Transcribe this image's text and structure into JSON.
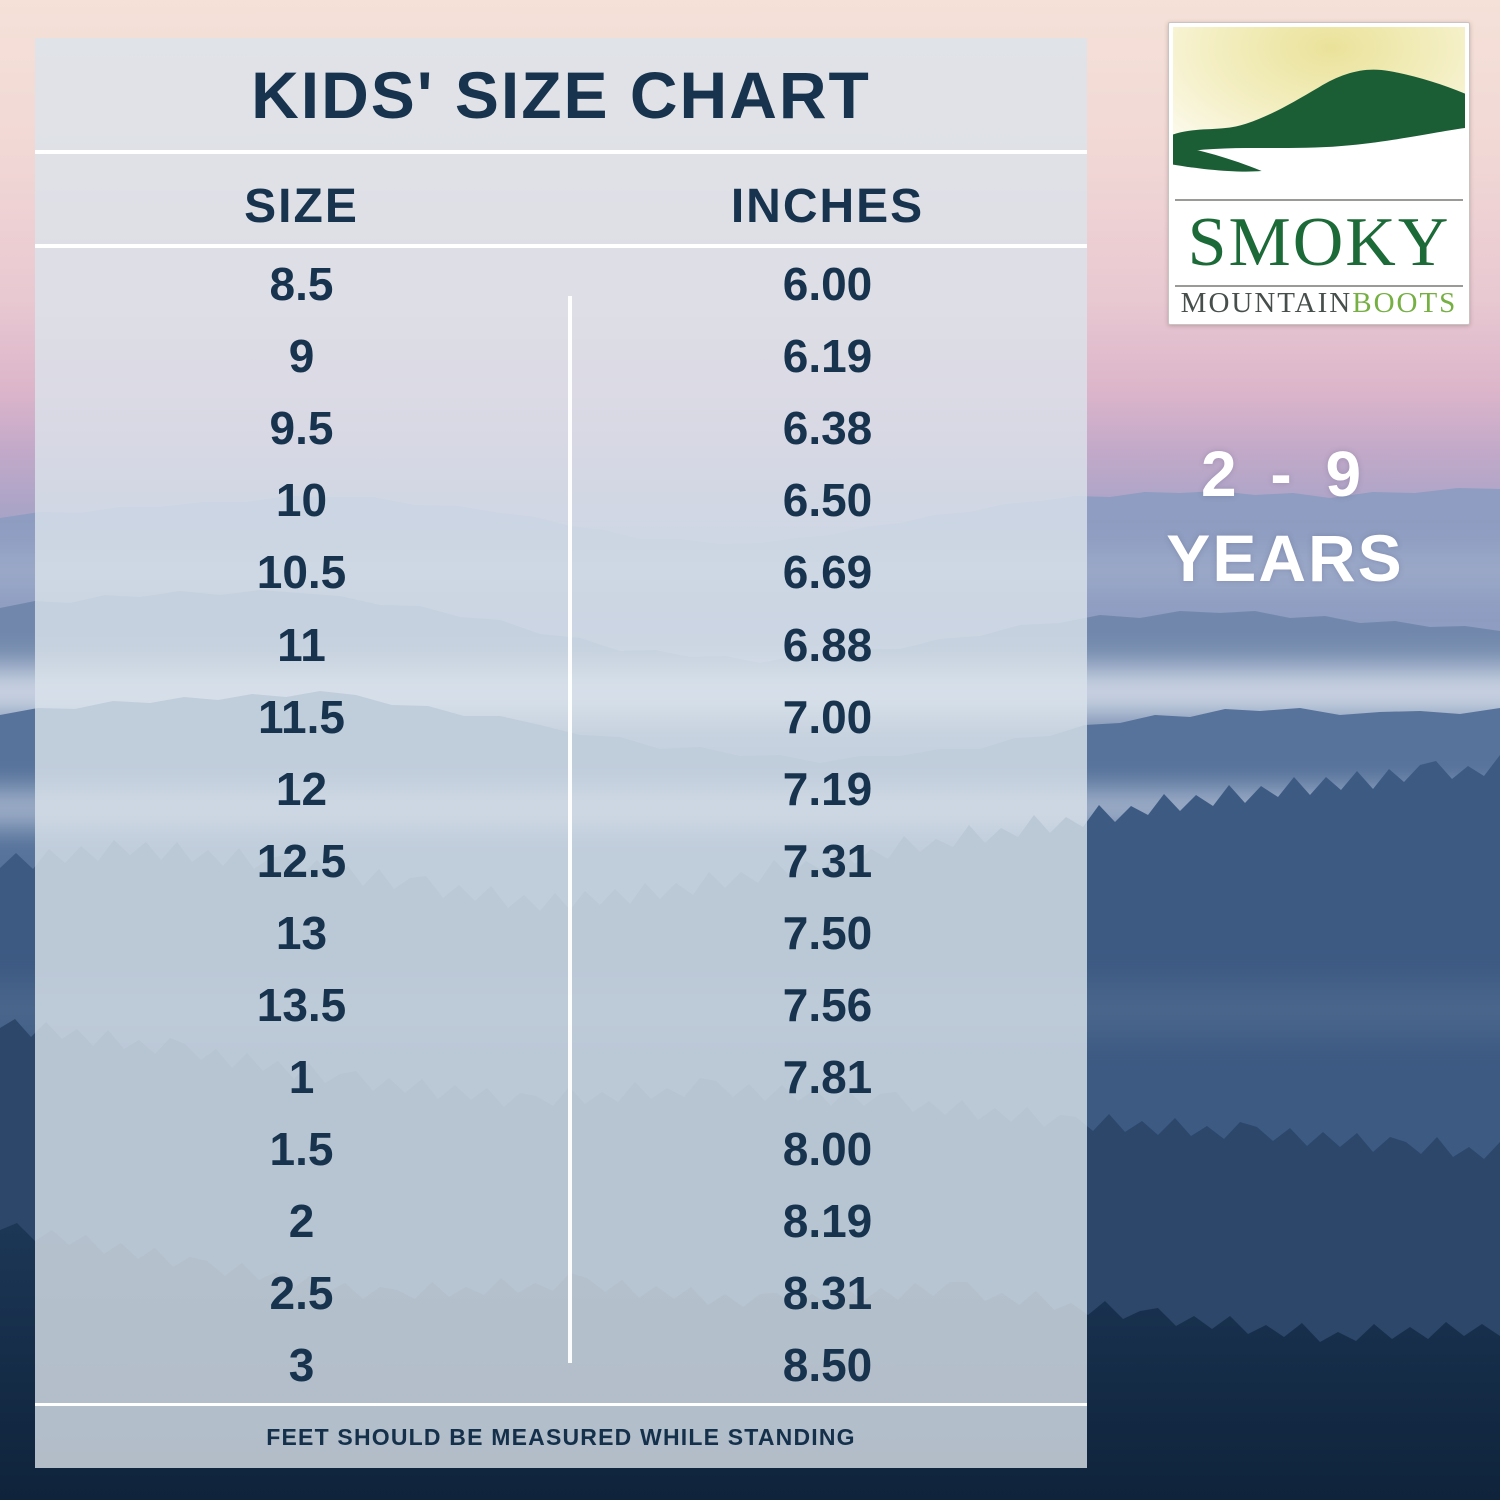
{
  "chart_data": {
    "type": "table",
    "title": "KIDS' SIZE CHART",
    "columns": [
      "SIZE",
      "INCHES"
    ],
    "rows": [
      [
        "8.5",
        "6.00"
      ],
      [
        "9",
        "6.19"
      ],
      [
        "9.5",
        "6.38"
      ],
      [
        "10",
        "6.50"
      ],
      [
        "10.5",
        "6.69"
      ],
      [
        "11",
        "6.88"
      ],
      [
        "11.5",
        "7.00"
      ],
      [
        "12",
        "7.19"
      ],
      [
        "12.5",
        "7.31"
      ],
      [
        "13",
        "7.50"
      ],
      [
        "13.5",
        "7.56"
      ],
      [
        "1",
        "7.81"
      ],
      [
        "1.5",
        "8.00"
      ],
      [
        "2",
        "8.19"
      ],
      [
        "2.5",
        "8.31"
      ],
      [
        "3",
        "8.50"
      ]
    ],
    "footnote": "FEET SHOULD BE MEASURED WHILE STANDING",
    "layout_hints": {
      "columns_divider": true,
      "header_rules": true
    }
  },
  "logo": {
    "name": "SMOKY",
    "sub_mountain": "MOUNTAIN",
    "sub_boots": "BOOTS"
  },
  "age_badge": {
    "range": "2 - 9",
    "unit": "YEARS"
  },
  "colors": {
    "text_navy": "#17334e",
    "panel_tint": "rgba(219,228,235,0.80)",
    "logo_green": "#1d6a39",
    "boots_green": "#76b043",
    "age_text": "#ffffff"
  }
}
